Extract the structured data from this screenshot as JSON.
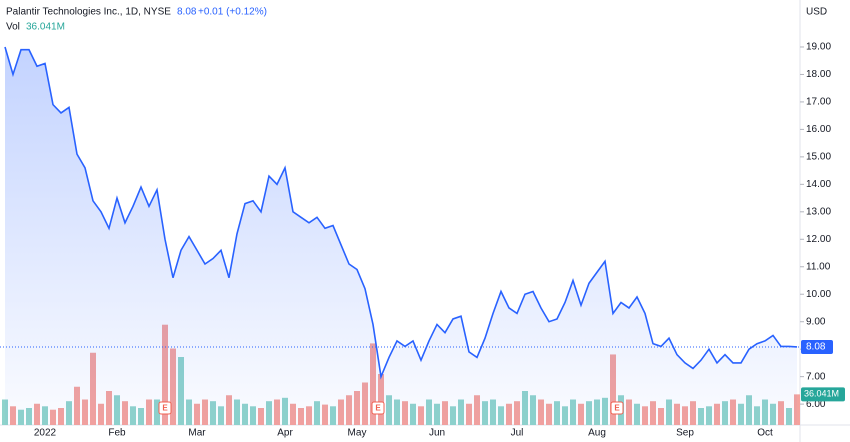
{
  "chart_data": {
    "type": "line",
    "title": "Palantir Technologies Inc., 1D, NYSE",
    "last_price": 8.08,
    "change": "+0.01 (+0.12%)",
    "volume_title": "Vol",
    "volume_last_label": "36.041M",
    "currency": "USD",
    "earnings_label": "E",
    "categories": [
      null,
      null,
      null,
      null,
      null,
      "2022",
      null,
      null,
      null,
      null,
      null,
      null,
      null,
      null,
      "Feb",
      null,
      null,
      null,
      null,
      null,
      null,
      null,
      null,
      null,
      "Mar",
      null,
      null,
      null,
      null,
      null,
      null,
      null,
      null,
      null,
      null,
      "Apr",
      null,
      null,
      null,
      null,
      null,
      null,
      null,
      null,
      "May",
      null,
      null,
      null,
      null,
      null,
      null,
      null,
      null,
      null,
      "Jun",
      null,
      null,
      null,
      null,
      null,
      null,
      null,
      null,
      null,
      "Jul",
      null,
      null,
      null,
      null,
      null,
      null,
      null,
      null,
      null,
      "Aug",
      null,
      null,
      null,
      null,
      null,
      null,
      null,
      null,
      null,
      null,
      "Sep",
      null,
      null,
      null,
      null,
      null,
      null,
      null,
      null,
      null,
      "Oct",
      null,
      null,
      null,
      null
    ],
    "series": [
      {
        "name": "Price",
        "color": "#2962ff",
        "values": [
          19.0,
          18.0,
          18.9,
          18.9,
          18.3,
          18.4,
          16.9,
          16.6,
          16.8,
          15.1,
          14.6,
          13.4,
          13.0,
          12.4,
          13.5,
          12.6,
          13.2,
          13.9,
          13.2,
          13.8,
          12.0,
          10.6,
          11.6,
          12.1,
          11.6,
          11.1,
          11.3,
          11.6,
          10.6,
          12.2,
          13.3,
          13.4,
          13.0,
          14.3,
          14.0,
          14.6,
          13.0,
          12.8,
          12.6,
          12.8,
          12.4,
          12.5,
          11.8,
          11.1,
          10.9,
          10.2,
          8.9,
          7.0,
          7.7,
          8.3,
          8.1,
          8.3,
          7.6,
          8.3,
          8.9,
          8.6,
          9.1,
          9.2,
          7.9,
          7.7,
          8.4,
          9.3,
          10.1,
          9.5,
          9.3,
          10.0,
          10.1,
          9.5,
          9.0,
          9.1,
          9.7,
          10.5,
          9.6,
          10.4,
          10.8,
          11.2,
          9.3,
          9.7,
          9.5,
          9.9,
          9.3,
          8.2,
          8.1,
          8.4,
          7.8,
          7.5,
          7.3,
          7.6,
          8.0,
          7.5,
          7.8,
          7.5,
          7.5,
          8.0,
          8.2,
          8.3,
          8.5,
          8.1,
          8.1,
          8.08
        ]
      },
      {
        "name": "Vol",
        "axis": "volume",
        "values": [
          30,
          22,
          18,
          20,
          25,
          22,
          18,
          20,
          28,
          45,
          30,
          85,
          25,
          40,
          35,
          28,
          22,
          20,
          30,
          30,
          118,
          90,
          80,
          30,
          25,
          30,
          28,
          22,
          35,
          30,
          25,
          22,
          20,
          28,
          30,
          32,
          25,
          20,
          22,
          28,
          24,
          22,
          30,
          35,
          40,
          50,
          96,
          60,
          35,
          30,
          28,
          25,
          22,
          30,
          25,
          28,
          22,
          30,
          25,
          35,
          28,
          30,
          22,
          25,
          28,
          40,
          35,
          30,
          25,
          28,
          22,
          30,
          25,
          28,
          30,
          32,
          83,
          35,
          30,
          25,
          22,
          28,
          20,
          30,
          25,
          22,
          28,
          20,
          22,
          25,
          28,
          30,
          25,
          35,
          22,
          30,
          25,
          28,
          20,
          36.041
        ]
      }
    ],
    "ylim": [
      5.24,
      20.71
    ],
    "volume_lim": [
      0,
      500
    ],
    "yticks": [
      {
        "value": 6,
        "label": "6.00"
      },
      {
        "value": 7,
        "label": "7.00"
      },
      {
        "value": 8,
        "label": "8.00"
      },
      {
        "value": 9,
        "label": "9.00"
      },
      {
        "value": 10,
        "label": "10.00"
      },
      {
        "value": 11,
        "label": "11.00"
      },
      {
        "value": 12,
        "label": "12.00"
      },
      {
        "value": 13,
        "label": "13.00"
      },
      {
        "value": 14,
        "label": "14.00"
      },
      {
        "value": 15,
        "label": "15.00"
      },
      {
        "value": 16,
        "label": "16.00"
      },
      {
        "value": 17,
        "label": "17.00"
      },
      {
        "value": 18,
        "label": "18.00"
      },
      {
        "value": 19,
        "label": "19.00"
      }
    ],
    "up_color": "#8fd3cb",
    "down_color": "#f4a29d",
    "grid": false
  }
}
